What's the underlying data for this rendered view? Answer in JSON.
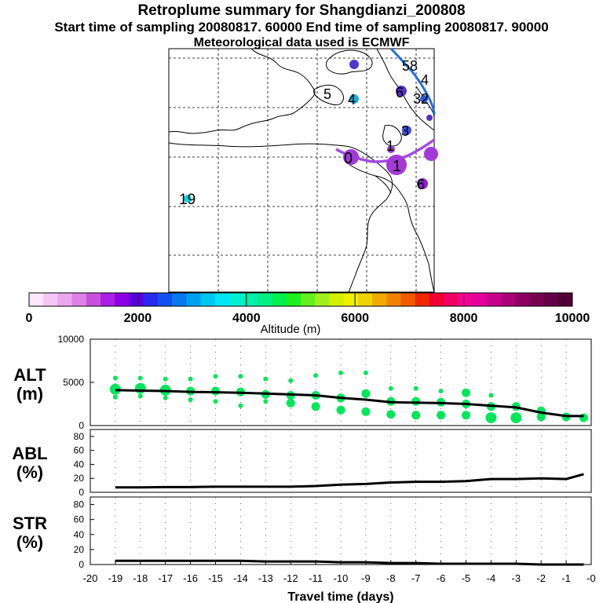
{
  "header": {
    "title": "Retroplume summary for Shangdianzi_200808",
    "sampling_line": "Start time of sampling 20080817. 60000      End time of sampling 20080817. 90000",
    "met_line": "Meteorological data used is ECMWF"
  },
  "colorbar": {
    "colors": [
      "#ffe6ff",
      "#f5c6f5",
      "#eaa6ee",
      "#dc82e6",
      "#c850dc",
      "#aa1ee6",
      "#8c00e6",
      "#5a00dc",
      "#2828f0",
      "#1450f0",
      "#0a78f0",
      "#00a0f0",
      "#00c8f0",
      "#00e6f5",
      "#00f0d2",
      "#00f0aa",
      "#00f082",
      "#00f050",
      "#1ef01e",
      "#64f01e",
      "#a0f01e",
      "#d2f000",
      "#f0f000",
      "#f0d200",
      "#f0aa00",
      "#f08200",
      "#f05a00",
      "#f02800",
      "#f00032",
      "#f00064",
      "#f00096",
      "#e6009b",
      "#c8008c",
      "#aa0078",
      "#8c0064",
      "#780050",
      "#640046",
      "#500032"
    ],
    "tick_labels": [
      "0",
      "2000",
      "4000",
      "6000",
      "8000",
      "10000"
    ],
    "label": "Altitude (m)"
  },
  "map": {
    "labels": [
      {
        "text": "5",
        "color": "#2a5ad8"
      },
      {
        "text": "4",
        "color": "#21a9e0"
      },
      {
        "text": "6",
        "color": "#5a30c8"
      },
      {
        "text": "3",
        "color": "#3b4fd8"
      },
      {
        "text": "1",
        "color": "#9a3ad0"
      },
      {
        "text": "0",
        "color": "#9a3ad0"
      },
      {
        "text": "1",
        "color": "#9a3ad0"
      },
      {
        "text": "6",
        "color": "#8a20c8"
      },
      {
        "text": "19",
        "color": "#00d8e8"
      },
      {
        "text": "58",
        "color": "#2a5ad8"
      },
      {
        "text": "4",
        "color": "#2a5ad8"
      },
      {
        "text": "32",
        "color": "#2a5ad8"
      }
    ]
  },
  "chart_data": [
    {
      "type": "scatter",
      "panel": "altitude",
      "ylabel_line1": "ALT",
      "ylabel_line2": "(m)",
      "ylim": [
        0,
        10000
      ],
      "yticks": [
        "0",
        "5000",
        "10000"
      ],
      "xlim": [
        -20,
        0
      ],
      "series": [
        {
          "name": "mean altitude",
          "color": "#000000",
          "x": [
            -19,
            -18,
            -17,
            -16,
            -15,
            -14,
            -13,
            -12,
            -11,
            -10,
            -9,
            -8,
            -7,
            -6,
            -5,
            -4,
            -3,
            -2,
            -1,
            -0.3
          ],
          "y": [
            4100,
            4050,
            4000,
            3900,
            3850,
            3800,
            3700,
            3600,
            3500,
            3200,
            3000,
            2700,
            2650,
            2600,
            2500,
            2300,
            2100,
            1500,
            1100,
            1100
          ]
        },
        {
          "name": "plume clusters",
          "color": "#00e65a",
          "points": [
            {
              "x": -19,
              "y": 4200,
              "s": 3
            },
            {
              "x": -19,
              "y": 5500,
              "s": 1
            },
            {
              "x": -19,
              "y": 3300,
              "s": 1
            },
            {
              "x": -18,
              "y": 4300,
              "s": 3
            },
            {
              "x": -18,
              "y": 5500,
              "s": 1
            },
            {
              "x": -18,
              "y": 3400,
              "s": 1
            },
            {
              "x": -17,
              "y": 4100,
              "s": 3
            },
            {
              "x": -17,
              "y": 5400,
              "s": 1
            },
            {
              "x": -17,
              "y": 3200,
              "s": 1
            },
            {
              "x": -16,
              "y": 4000,
              "s": 2
            },
            {
              "x": -16,
              "y": 5400,
              "s": 1
            },
            {
              "x": -16,
              "y": 3000,
              "s": 1
            },
            {
              "x": -15,
              "y": 4000,
              "s": 2
            },
            {
              "x": -15,
              "y": 5700,
              "s": 1
            },
            {
              "x": -15,
              "y": 2800,
              "s": 1
            },
            {
              "x": -14,
              "y": 3900,
              "s": 2
            },
            {
              "x": -14,
              "y": 5700,
              "s": 1
            },
            {
              "x": -14,
              "y": 2300,
              "s": 1
            },
            {
              "x": -13,
              "y": 3600,
              "s": 2
            },
            {
              "x": -13,
              "y": 5400,
              "s": 1
            },
            {
              "x": -13,
              "y": 2800,
              "s": 1
            },
            {
              "x": -12,
              "y": 3500,
              "s": 2
            },
            {
              "x": -12,
              "y": 5200,
              "s": 1
            },
            {
              "x": -12,
              "y": 2600,
              "s": 2
            },
            {
              "x": -11,
              "y": 3500,
              "s": 2
            },
            {
              "x": -11,
              "y": 5800,
              "s": 1
            },
            {
              "x": -11,
              "y": 2200,
              "s": 2
            },
            {
              "x": -10,
              "y": 3200,
              "s": 2
            },
            {
              "x": -10,
              "y": 6100,
              "s": 1
            },
            {
              "x": -10,
              "y": 1800,
              "s": 2
            },
            {
              "x": -9,
              "y": 3700,
              "s": 2
            },
            {
              "x": -9,
              "y": 6100,
              "s": 1
            },
            {
              "x": -9,
              "y": 1600,
              "s": 2
            },
            {
              "x": -8,
              "y": 2800,
              "s": 2
            },
            {
              "x": -8,
              "y": 4300,
              "s": 1
            },
            {
              "x": -8,
              "y": 1300,
              "s": 2
            },
            {
              "x": -7,
              "y": 2800,
              "s": 2
            },
            {
              "x": -7,
              "y": 4300,
              "s": 1
            },
            {
              "x": -7,
              "y": 1200,
              "s": 2
            },
            {
              "x": -6,
              "y": 2700,
              "s": 2
            },
            {
              "x": -6,
              "y": 4000,
              "s": 1
            },
            {
              "x": -6,
              "y": 1200,
              "s": 2
            },
            {
              "x": -5,
              "y": 2500,
              "s": 2
            },
            {
              "x": -5,
              "y": 3800,
              "s": 2
            },
            {
              "x": -5,
              "y": 1200,
              "s": 2
            },
            {
              "x": -4,
              "y": 2200,
              "s": 2
            },
            {
              "x": -4,
              "y": 3500,
              "s": 1
            },
            {
              "x": -4,
              "y": 900,
              "s": 3
            },
            {
              "x": -3,
              "y": 2200,
              "s": 2
            },
            {
              "x": -3,
              "y": 900,
              "s": 3
            },
            {
              "x": -2,
              "y": 1700,
              "s": 2
            },
            {
              "x": -2,
              "y": 1000,
              "s": 2
            },
            {
              "x": -1,
              "y": 1000,
              "s": 2
            },
            {
              "x": -0.3,
              "y": 900,
              "s": 2
            }
          ]
        }
      ]
    },
    {
      "type": "line",
      "panel": "abl",
      "ylabel_line1": "ABL",
      "ylabel_line2": "(%)",
      "ylim": [
        0,
        90
      ],
      "yticks": [
        "0",
        "20",
        "40",
        "60",
        "80"
      ],
      "xlim": [
        -20,
        0
      ],
      "x": [
        -19,
        -18,
        -17,
        -16,
        -15,
        -14,
        -13,
        -12,
        -11,
        -10,
        -9,
        -8,
        -7,
        -6,
        -5,
        -4,
        -3,
        -2,
        -1,
        -0.3
      ],
      "values": [
        7,
        7,
        7.5,
        7.5,
        8,
        8,
        8,
        8,
        9,
        11,
        12,
        14,
        15,
        15,
        16,
        19,
        19,
        20,
        19,
        26
      ]
    },
    {
      "type": "line",
      "panel": "stratosphere",
      "ylabel_line1": "STR",
      "ylabel_line2": "(%)",
      "ylim": [
        0,
        90
      ],
      "yticks": [
        "0",
        "20",
        "40",
        "60",
        "80"
      ],
      "xlim": [
        -20,
        0
      ],
      "x": [
        -19,
        -18,
        -17,
        -16,
        -15,
        -14,
        -13,
        -12,
        -11,
        -10,
        -9,
        -8,
        -7,
        -6,
        -5,
        -4,
        -3,
        -2,
        -1,
        -0.3
      ],
      "values": [
        5,
        5,
        5,
        5,
        5,
        5,
        4,
        4,
        4,
        3,
        3,
        2,
        2,
        1,
        1,
        1,
        1,
        0,
        0,
        0
      ]
    }
  ],
  "x_axis": {
    "tick_labels": [
      "-20",
      "-19",
      "-18",
      "-17",
      "-16",
      "-15",
      "-14",
      "-13",
      "-12",
      "-11",
      "-10",
      "-9",
      "-8",
      "-7",
      "-6",
      "-5",
      "-4",
      "-3",
      "-2",
      "-1",
      "-0"
    ],
    "label": "Travel time (days)"
  }
}
